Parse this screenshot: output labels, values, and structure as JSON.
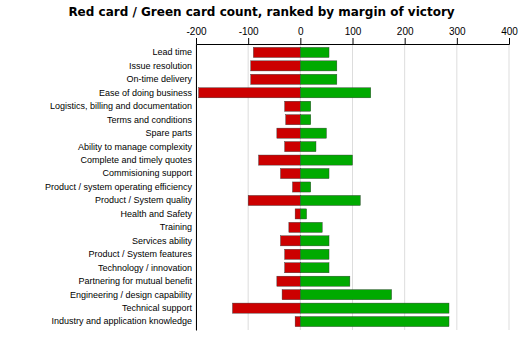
{
  "chart_data": {
    "type": "bar",
    "orientation": "horizontal",
    "title": "Red card / Green card count, ranked by margin of victory",
    "categories": [
      "Lead time",
      "Issue resolution",
      "On-time delivery",
      "Ease of doing business",
      "Logistics, billing and documentation",
      "Terms and conditions",
      "Spare parts",
      "Ability to manage complexity",
      "Complete and timely quotes",
      "Commisioning support",
      "Product / system operating efficiency",
      "Product / System quality",
      "Health and Safety",
      "Training",
      "Services ability",
      "Product / System features",
      "Technology / innovation",
      "Partnering for mutual benefit",
      "Engineering / design capability",
      "Technical support",
      "Industry and application knowledge"
    ],
    "series": [
      {
        "color": "#cc0000",
        "values": [
          -90,
          -95,
          -95,
          -195,
          -30,
          -28,
          -45,
          -30,
          -80,
          -38,
          -15,
          -100,
          -10,
          -22,
          -38,
          -30,
          -30,
          -45,
          -35,
          -130,
          -10
        ]
      },
      {
        "color": "#00aa00",
        "values": [
          55,
          70,
          70,
          135,
          20,
          20,
          50,
          30,
          100,
          55,
          20,
          115,
          12,
          42,
          55,
          55,
          55,
          95,
          175,
          285,
          285
        ]
      }
    ],
    "xlim": [
      -200,
      400
    ],
    "xticks": [
      -200,
      -100,
      0,
      100,
      200,
      300,
      400
    ],
    "grid": true
  }
}
